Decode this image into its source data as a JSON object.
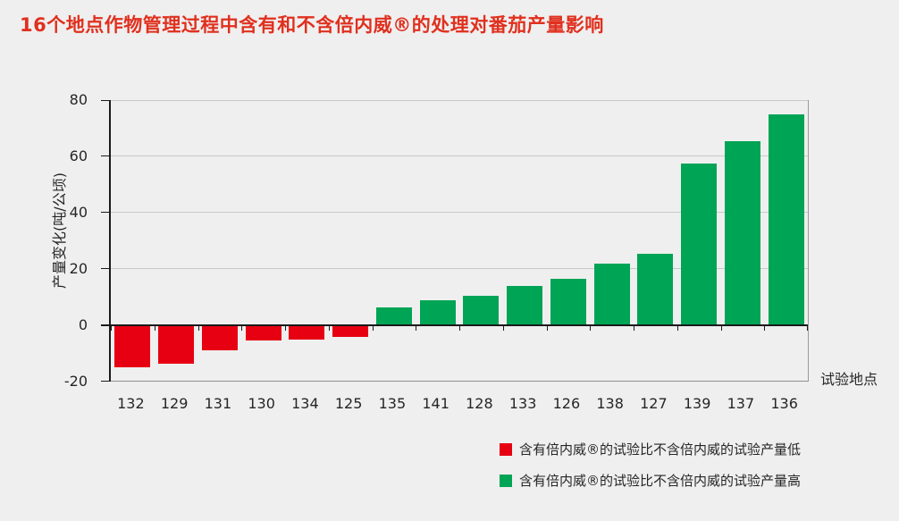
{
  "title": {
    "text": "16个地点作物管理过程中含有和不含倍内威®的处理对番茄产量影响",
    "color": "#e0301e"
  },
  "chart_data": {
    "type": "bar",
    "title": "16个地点作物管理过程中含有和不含倍内威®的处理对番茄产量影响",
    "categories": [
      "132",
      "129",
      "131",
      "130",
      "134",
      "125",
      "135",
      "141",
      "128",
      "133",
      "126",
      "138",
      "127",
      "139",
      "137",
      "136"
    ],
    "values": [
      -15,
      -13.5,
      -9,
      -5.5,
      -5,
      -4,
      6.5,
      9,
      10.5,
      14,
      16.5,
      22,
      25.5,
      57.5,
      65.5,
      75
    ],
    "ylabel": "产量变化(吨/公顷)",
    "xlabel": "试验地点",
    "ylim": [
      -20,
      80
    ],
    "yticks": [
      80,
      60,
      40,
      20,
      0,
      -20
    ],
    "grid": true,
    "legend_position": "bottom-right",
    "colors": {
      "negative": "#e60012",
      "positive": "#00a455",
      "grid": "#c9c9c9",
      "zero_axis": "#1a1a1a",
      "frame": "#8f8f8f"
    }
  },
  "legend": {
    "items": [
      {
        "color": "#e60012",
        "label": "含有倍内威®的试验比不含倍内威的试验产量低"
      },
      {
        "color": "#00a455",
        "label": "含有倍内威®的试验比不含倍内威的试验产量高"
      }
    ]
  }
}
